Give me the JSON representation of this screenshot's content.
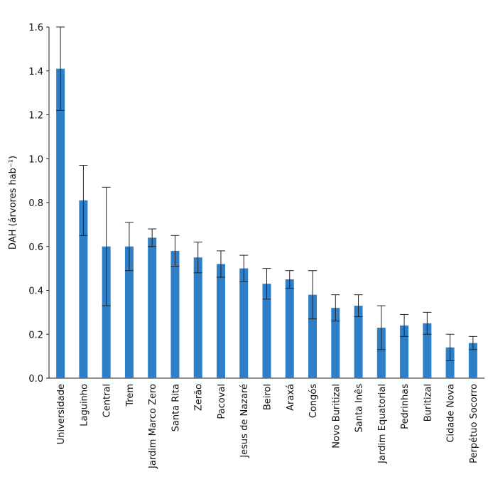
{
  "chart_data": {
    "type": "bar",
    "y_label": "DAH (árvores hab⁻¹)",
    "categories": [
      "Universidade",
      "Laguinho",
      "Central",
      "Trem",
      "Jardim Marco Zero",
      "Santa Rita",
      "Zerão",
      "Pacoval",
      "Jesus de Nazaré",
      "Beirol",
      "Araxá",
      "Congós",
      "Novo Buritizal",
      "Santa Inês",
      "Jardim Equatorial",
      "Pedrinhas",
      "Buritizal",
      "Cidade Nova",
      "Perpétuo Socorro"
    ],
    "values": [
      1.41,
      0.81,
      0.6,
      0.6,
      0.64,
      0.58,
      0.55,
      0.52,
      0.5,
      0.43,
      0.45,
      0.38,
      0.32,
      0.33,
      0.23,
      0.24,
      0.25,
      0.14,
      0.16
    ],
    "errors": [
      0.19,
      0.16,
      0.27,
      0.11,
      0.04,
      0.07,
      0.07,
      0.06,
      0.06,
      0.07,
      0.04,
      0.11,
      0.06,
      0.05,
      0.1,
      0.05,
      0.05,
      0.06,
      0.03
    ],
    "color": "#2e7fc7",
    "ylim": [
      0,
      1.6
    ],
    "yticks": [
      {
        "value": 0,
        "label": "0.0"
      },
      0.2,
      0.4,
      0.6,
      0.8,
      {
        "value": 1,
        "label": "1.0"
      },
      1.2,
      1.4,
      1.6
    ],
    "grid": false
  }
}
